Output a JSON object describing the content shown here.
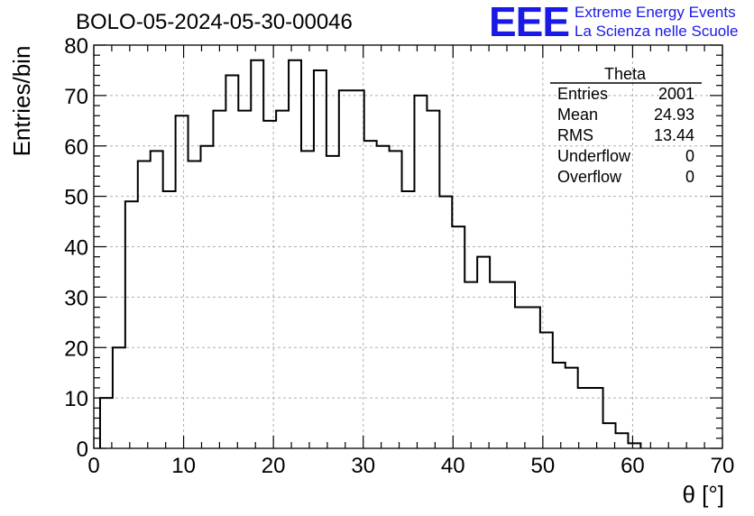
{
  "chart_data": {
    "type": "histogram",
    "title": "BOLO-05-2024-05-30-00046",
    "xlabel": "θ [°]",
    "ylabel": "Entries/bin",
    "xlim": [
      0,
      70
    ],
    "ylim": [
      0,
      80
    ],
    "x_ticks": [
      0,
      10,
      20,
      30,
      40,
      50,
      60,
      70
    ],
    "y_ticks": [
      0,
      10,
      20,
      30,
      40,
      50,
      60,
      70,
      80
    ],
    "grid": true,
    "bin_width": 1.4,
    "bin_start": 0.7,
    "values": [
      10,
      20,
      49,
      57,
      59,
      51,
      66,
      57,
      60,
      67,
      74,
      67,
      77,
      65,
      67,
      77,
      59,
      75,
      58,
      71,
      71,
      61,
      60,
      59,
      51,
      70,
      67,
      50,
      44,
      33,
      38,
      33,
      33,
      28,
      28,
      23,
      17,
      16,
      12,
      12,
      5,
      3,
      1
    ],
    "stats_box": {
      "title": "Theta",
      "rows": [
        {
          "label": "Entries",
          "value": "2001"
        },
        {
          "label": "Mean",
          "value": "24.93"
        },
        {
          "label": "RMS",
          "value": "13.44"
        },
        {
          "label": "Underflow",
          "value": "0"
        },
        {
          "label": "Overflow",
          "value": "0"
        }
      ]
    }
  },
  "logo": {
    "mark": "EEE",
    "line1": "Extreme Energy Events",
    "line2": "La Scienza nelle Scuole",
    "color": "#1a1ae6"
  }
}
